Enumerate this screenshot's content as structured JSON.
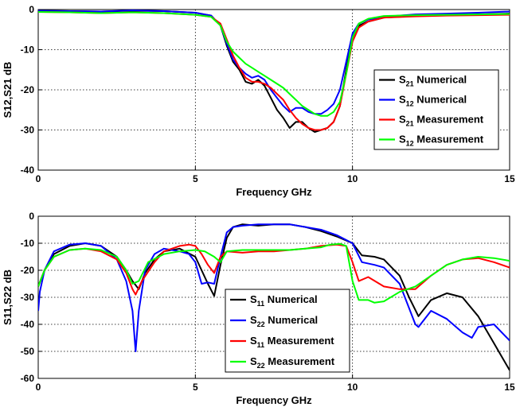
{
  "chart_data": [
    {
      "type": "line",
      "xlabel": "Frequency GHz",
      "ylabel": "S12,S21 dB",
      "xlim": [
        0,
        15
      ],
      "ylim": [
        -40,
        0
      ],
      "xticks": [
        "0",
        "5",
        "10",
        "15"
      ],
      "yticks": [
        "0",
        "-10",
        "-20",
        "-30",
        "-40"
      ],
      "grid": true,
      "legend_position": "right",
      "series": [
        {
          "name_main": "S",
          "name_sub": "21",
          "name_rest": " Numerical",
          "color": "#000000",
          "x": [
            0,
            1,
            2,
            3,
            4,
            5,
            5.5,
            5.8,
            6.0,
            6.2,
            6.4,
            6.6,
            6.8,
            7.0,
            7.2,
            7.4,
            7.6,
            7.8,
            8.0,
            8.2,
            8.4,
            8.6,
            8.8,
            9.0,
            9.2,
            9.4,
            9.6,
            9.8,
            10.0,
            10.2,
            10.5,
            11,
            12,
            13,
            14,
            15
          ],
          "y": [
            -0.3,
            -0.4,
            -0.5,
            -0.3,
            -0.4,
            -0.8,
            -1.5,
            -4,
            -9,
            -13,
            -15,
            -18,
            -18.5,
            -17.5,
            -19,
            -22,
            -25,
            -27,
            -29.5,
            -28,
            -28,
            -29.5,
            -30.5,
            -30,
            -29.5,
            -28,
            -24,
            -15,
            -7,
            -4,
            -3,
            -2,
            -1.6,
            -1.4,
            -1.2,
            -1.0
          ]
        },
        {
          "name_main": "S",
          "name_sub": "12",
          "name_rest": " Numerical",
          "color": "#0000ff",
          "x": [
            0,
            1,
            2,
            3,
            4,
            5,
            5.5,
            5.8,
            6.0,
            6.2,
            6.4,
            6.6,
            6.8,
            7.0,
            7.2,
            7.4,
            7.6,
            7.8,
            8.0,
            8.2,
            8.4,
            8.6,
            8.8,
            9.0,
            9.2,
            9.4,
            9.6,
            9.8,
            10.0,
            10.2,
            10.5,
            11,
            12,
            13,
            14,
            15
          ],
          "y": [
            -0.3,
            -0.4,
            -0.5,
            -0.2,
            -0.4,
            -0.8,
            -1.5,
            -4,
            -8.5,
            -12.5,
            -14.5,
            -16,
            -17,
            -16.5,
            -17.5,
            -20,
            -22,
            -24,
            -25.5,
            -24.5,
            -24.5,
            -25.5,
            -26,
            -26,
            -25,
            -23.5,
            -20,
            -13,
            -6,
            -3.5,
            -2.5,
            -1.8,
            -1.2,
            -1.0,
            -0.8,
            -0.5
          ]
        },
        {
          "name_main": "S",
          "name_sub": "21",
          "name_rest": " Measurement",
          "color": "#ff0000",
          "x": [
            0,
            1,
            2,
            3,
            4,
            5,
            5.5,
            5.8,
            6.0,
            6.2,
            6.4,
            6.6,
            6.8,
            7.0,
            7.2,
            7.4,
            7.6,
            7.8,
            8.0,
            8.2,
            8.4,
            8.6,
            8.8,
            9.0,
            9.2,
            9.4,
            9.6,
            9.8,
            10.0,
            10.2,
            10.5,
            11,
            12,
            13,
            14,
            15
          ],
          "y": [
            -0.6,
            -0.7,
            -0.9,
            -0.7,
            -0.9,
            -1.3,
            -1.8,
            -3.5,
            -7.5,
            -11.5,
            -14.5,
            -17,
            -18,
            -18,
            -18.5,
            -19.5,
            -21,
            -22.5,
            -25,
            -27,
            -28.5,
            -29.5,
            -30,
            -30,
            -29.5,
            -28,
            -24,
            -16,
            -8,
            -4.5,
            -3,
            -2,
            -1.7,
            -1.5,
            -1.4,
            -1.3
          ]
        },
        {
          "name_main": "S",
          "name_sub": "12",
          "name_rest": " Measurement",
          "color": "#00ff00",
          "x": [
            0,
            1,
            2,
            3,
            4,
            5,
            5.5,
            5.8,
            6.0,
            6.2,
            6.4,
            6.6,
            6.8,
            7.0,
            7.2,
            7.4,
            7.6,
            7.8,
            8.0,
            8.2,
            8.4,
            8.6,
            8.8,
            9.0,
            9.2,
            9.4,
            9.6,
            9.8,
            10.0,
            10.2,
            10.5,
            11,
            12,
            13,
            14,
            15
          ],
          "y": [
            -0.6,
            -0.7,
            -0.9,
            -0.7,
            -0.9,
            -1.3,
            -1.8,
            -4,
            -8,
            -10.5,
            -12,
            -13.5,
            -14.5,
            -15.5,
            -16.5,
            -17.5,
            -18.5,
            -19.5,
            -21,
            -22.5,
            -24,
            -25,
            -26,
            -26.5,
            -26.5,
            -25.5,
            -23,
            -16,
            -7,
            -3.5,
            -2.3,
            -1.6,
            -1.4,
            -1.3,
            -1.2,
            -1.1
          ]
        }
      ]
    },
    {
      "type": "line",
      "xlabel": "Frequency GHz",
      "ylabel": "S11,S22 dB",
      "xlim": [
        0,
        15
      ],
      "ylim": [
        -60,
        0
      ],
      "xticks": [
        "0",
        "5",
        "10",
        "15"
      ],
      "yticks": [
        "0",
        "-10",
        "-20",
        "-30",
        "-40",
        "-50",
        "-60"
      ],
      "grid": true,
      "legend_position": "bottom-center",
      "series": [
        {
          "name_main": "S",
          "name_sub": "11",
          "name_rest": " Numerical",
          "color": "#000000",
          "x": [
            0,
            0.2,
            0.5,
            1.0,
            1.5,
            2.0,
            2.5,
            2.8,
            3.0,
            3.2,
            3.4,
            3.7,
            4.0,
            4.5,
            5.0,
            5.2,
            5.4,
            5.6,
            5.8,
            6.0,
            6.2,
            6.5,
            7.0,
            7.5,
            8.0,
            8.5,
            9.0,
            9.5,
            10.0,
            10.3,
            10.7,
            11.0,
            11.5,
            11.8,
            12.1,
            12.5,
            13.0,
            13.5,
            14.0,
            14.5,
            15.0
          ],
          "y": [
            -26,
            -20,
            -14,
            -11,
            -10,
            -11,
            -15,
            -20,
            -24,
            -27,
            -21,
            -16,
            -13,
            -12,
            -15,
            -20,
            -25,
            -29.5,
            -18,
            -8,
            -4,
            -3,
            -3.5,
            -3,
            -3,
            -4,
            -5.5,
            -7.5,
            -10,
            -14.5,
            -15,
            -16,
            -22,
            -30,
            -37,
            -31,
            -28.5,
            -30,
            -37,
            -47,
            -57
          ]
        },
        {
          "name_main": "S",
          "name_sub": "22",
          "name_rest": " Numerical",
          "color": "#0000ff",
          "x": [
            0,
            0.05,
            0.2,
            0.5,
            1.0,
            1.5,
            2.0,
            2.5,
            2.8,
            3.0,
            3.1,
            3.2,
            3.4,
            3.7,
            4.0,
            4.5,
            4.8,
            5.0,
            5.2,
            5.4,
            5.6,
            5.8,
            6.0,
            6.2,
            6.5,
            7.0,
            7.5,
            8.0,
            8.5,
            9.0,
            9.5,
            10.0,
            10.3,
            10.7,
            11.0,
            11.5,
            12.0,
            12.1,
            12.5,
            13.0,
            13.5,
            13.8,
            14.0,
            14.5,
            15.0
          ],
          "y": [
            -35,
            -28,
            -20,
            -13,
            -10.5,
            -10,
            -11,
            -16,
            -24,
            -35,
            -50,
            -35,
            -20,
            -14,
            -12,
            -13,
            -14,
            -17,
            -25,
            -24.5,
            -25,
            -15,
            -6,
            -4,
            -3.5,
            -3,
            -3,
            -3,
            -4,
            -5,
            -7,
            -10,
            -17,
            -18,
            -19,
            -25,
            -40,
            -41,
            -35,
            -38,
            -43,
            -45,
            -41,
            -40,
            -46
          ]
        },
        {
          "name_main": "S",
          "name_sub": "11",
          "name_rest": " Measurement",
          "color": "#ff0000",
          "x": [
            0,
            0.2,
            0.5,
            1.0,
            1.5,
            2.0,
            2.5,
            2.8,
            3.0,
            3.1,
            3.3,
            3.7,
            4.0,
            4.5,
            4.8,
            5.0,
            5.2,
            5.4,
            5.6,
            5.8,
            6.0,
            6.5,
            7.0,
            7.5,
            8.0,
            8.5,
            9.0,
            9.5,
            9.8,
            10.0,
            10.2,
            10.5,
            11.0,
            11.5,
            12.0,
            12.5,
            13.0,
            13.5,
            14.0,
            14.5,
            15.0
          ],
          "y": [
            -26,
            -20,
            -15,
            -12.5,
            -12,
            -13,
            -16,
            -21,
            -27,
            -29,
            -24,
            -17,
            -13,
            -11,
            -10.5,
            -11,
            -14,
            -18,
            -21,
            -15,
            -13,
            -13.5,
            -13,
            -13,
            -12.5,
            -12,
            -11,
            -10.5,
            -11,
            -17,
            -24,
            -22.5,
            -26,
            -27,
            -27,
            -22,
            -18,
            -16,
            -15.5,
            -17,
            -19
          ]
        },
        {
          "name_main": "S",
          "name_sub": "22",
          "name_rest": " Measurement",
          "color": "#00ff00",
          "x": [
            0,
            0.2,
            0.5,
            1.0,
            1.5,
            2.0,
            2.5,
            2.8,
            3.0,
            3.2,
            3.5,
            4.0,
            4.5,
            5.0,
            5.3,
            5.6,
            5.8,
            6.0,
            6.5,
            7.0,
            7.5,
            8.0,
            8.5,
            9.0,
            9.3,
            9.6,
            9.8,
            10.0,
            10.2,
            10.5,
            10.7,
            11.0,
            11.5,
            12.0,
            12.5,
            13.0,
            13.5,
            14.0,
            14.5,
            15.0
          ],
          "y": [
            -26,
            -20,
            -15,
            -12.5,
            -12,
            -12.5,
            -15,
            -20,
            -25,
            -24,
            -17,
            -14,
            -13,
            -12.5,
            -13,
            -15,
            -17,
            -13,
            -12.5,
            -12.5,
            -12.5,
            -12.5,
            -12,
            -11.5,
            -10.5,
            -10.2,
            -11,
            -24,
            -31,
            -31,
            -32,
            -31.5,
            -28,
            -26,
            -22,
            -18,
            -16,
            -15,
            -15.5,
            -16.5
          ]
        }
      ]
    }
  ]
}
